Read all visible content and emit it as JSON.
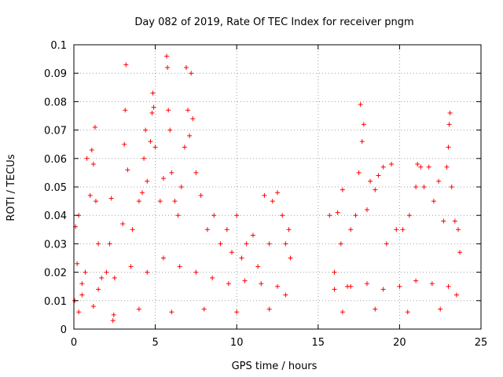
{
  "chart_data": {
    "type": "scatter",
    "title": "Day 082 of 2019, Rate Of TEC Index for receiver pngm",
    "xlabel": "GPS time / hours",
    "ylabel": "ROTI / TECUs",
    "xlim": [
      0,
      25
    ],
    "ylim": [
      0,
      0.1
    ],
    "xticks": [
      0,
      5,
      10,
      15,
      20,
      25
    ],
    "yticks": [
      0,
      0.01,
      0.02,
      0.03,
      0.04,
      0.05,
      0.06,
      0.07,
      0.08,
      0.09,
      0.1
    ],
    "xtick_labels": [
      "0",
      "5",
      "10",
      "15",
      "20",
      "25"
    ],
    "ytick_labels": [
      "0",
      "0.01",
      "0.02",
      "0.03",
      "0.04",
      "0.05",
      "0.06",
      "0.07",
      "0.08",
      "0.09",
      "0.1"
    ],
    "grid": true,
    "marker": "+",
    "color": "#ff0000",
    "data_gap_hours": [
      13.4,
      15.6
    ],
    "points": [
      [
        0.05,
        0.01
      ],
      [
        0.1,
        0.036
      ],
      [
        0.2,
        0.023
      ],
      [
        0.3,
        0.04
      ],
      [
        0.5,
        0.012
      ],
      [
        0.7,
        0.02
      ],
      [
        0.8,
        0.06
      ],
      [
        1.0,
        0.047
      ],
      [
        1.1,
        0.063
      ],
      [
        1.2,
        0.058
      ],
      [
        1.3,
        0.071
      ],
      [
        1.35,
        0.045
      ],
      [
        1.5,
        0.03
      ],
      [
        1.7,
        0.018
      ],
      [
        2.0,
        0.02
      ],
      [
        2.2,
        0.03
      ],
      [
        2.3,
        0.046
      ],
      [
        2.45,
        0.005
      ],
      [
        3.0,
        0.037
      ],
      [
        3.1,
        0.065
      ],
      [
        3.15,
        0.077
      ],
      [
        3.2,
        0.093
      ],
      [
        3.3,
        0.056
      ],
      [
        3.6,
        0.035
      ],
      [
        4.0,
        0.045
      ],
      [
        4.2,
        0.048
      ],
      [
        4.3,
        0.06
      ],
      [
        4.4,
        0.07
      ],
      [
        4.5,
        0.052
      ],
      [
        4.7,
        0.066
      ],
      [
        4.8,
        0.076
      ],
      [
        4.85,
        0.083
      ],
      [
        4.9,
        0.078
      ],
      [
        5.0,
        0.064
      ],
      [
        5.3,
        0.045
      ],
      [
        5.5,
        0.053
      ],
      [
        5.7,
        0.096
      ],
      [
        5.75,
        0.092
      ],
      [
        5.8,
        0.077
      ],
      [
        5.9,
        0.07
      ],
      [
        6.0,
        0.055
      ],
      [
        6.2,
        0.045
      ],
      [
        6.4,
        0.04
      ],
      [
        6.6,
        0.05
      ],
      [
        6.8,
        0.064
      ],
      [
        6.9,
        0.092
      ],
      [
        7.0,
        0.077
      ],
      [
        7.1,
        0.068
      ],
      [
        7.2,
        0.09
      ],
      [
        7.3,
        0.074
      ],
      [
        7.5,
        0.055
      ],
      [
        7.8,
        0.047
      ],
      [
        8.2,
        0.035
      ],
      [
        8.6,
        0.04
      ],
      [
        9.0,
        0.03
      ],
      [
        9.4,
        0.035
      ],
      [
        9.7,
        0.027
      ],
      [
        10.0,
        0.04
      ],
      [
        10.3,
        0.025
      ],
      [
        10.6,
        0.03
      ],
      [
        11.0,
        0.033
      ],
      [
        11.3,
        0.022
      ],
      [
        11.7,
        0.047
      ],
      [
        12.0,
        0.03
      ],
      [
        12.2,
        0.045
      ],
      [
        12.5,
        0.048
      ],
      [
        12.8,
        0.04
      ],
      [
        13.0,
        0.03
      ],
      [
        13.2,
        0.035
      ],
      [
        13.3,
        0.025
      ],
      [
        15.7,
        0.04
      ],
      [
        16.0,
        0.02
      ],
      [
        16.2,
        0.041
      ],
      [
        16.4,
        0.03
      ],
      [
        16.5,
        0.049
      ],
      [
        16.8,
        0.015
      ],
      [
        17.0,
        0.035
      ],
      [
        17.3,
        0.04
      ],
      [
        17.5,
        0.055
      ],
      [
        17.6,
        0.079
      ],
      [
        17.7,
        0.066
      ],
      [
        17.8,
        0.072
      ],
      [
        18.0,
        0.042
      ],
      [
        18.2,
        0.052
      ],
      [
        18.5,
        0.049
      ],
      [
        18.7,
        0.054
      ],
      [
        19.0,
        0.057
      ],
      [
        19.2,
        0.03
      ],
      [
        19.5,
        0.058
      ],
      [
        19.8,
        0.035
      ],
      [
        20.2,
        0.035
      ],
      [
        20.6,
        0.04
      ],
      [
        21.0,
        0.05
      ],
      [
        21.1,
        0.058
      ],
      [
        21.3,
        0.057
      ],
      [
        21.5,
        0.05
      ],
      [
        21.8,
        0.057
      ],
      [
        22.1,
        0.045
      ],
      [
        22.4,
        0.052
      ],
      [
        22.7,
        0.038
      ],
      [
        22.9,
        0.057
      ],
      [
        23.0,
        0.064
      ],
      [
        23.05,
        0.072
      ],
      [
        23.1,
        0.076
      ],
      [
        23.2,
        0.05
      ],
      [
        23.4,
        0.038
      ],
      [
        23.6,
        0.035
      ],
      [
        23.7,
        0.027
      ],
      [
        0.5,
        0.016
      ],
      [
        1.5,
        0.014
      ],
      [
        2.5,
        0.018
      ],
      [
        3.5,
        0.022
      ],
      [
        4.5,
        0.02
      ],
      [
        5.5,
        0.025
      ],
      [
        6.5,
        0.022
      ],
      [
        7.5,
        0.02
      ],
      [
        8.5,
        0.018
      ],
      [
        9.5,
        0.016
      ],
      [
        10.5,
        0.017
      ],
      [
        11.5,
        0.016
      ],
      [
        12.5,
        0.015
      ],
      [
        13.0,
        0.012
      ],
      [
        16.0,
        0.014
      ],
      [
        17.0,
        0.015
      ],
      [
        18.0,
        0.016
      ],
      [
        19.0,
        0.014
      ],
      [
        20.0,
        0.015
      ],
      [
        21.0,
        0.017
      ],
      [
        22.0,
        0.016
      ],
      [
        23.0,
        0.015
      ],
      [
        23.5,
        0.012
      ],
      [
        0.3,
        0.006
      ],
      [
        1.2,
        0.008
      ],
      [
        2.4,
        0.003
      ],
      [
        4.0,
        0.007
      ],
      [
        6.0,
        0.006
      ],
      [
        8.0,
        0.007
      ],
      [
        10.0,
        0.006
      ],
      [
        12.0,
        0.007
      ],
      [
        16.5,
        0.006
      ],
      [
        18.5,
        0.007
      ],
      [
        20.5,
        0.006
      ],
      [
        22.5,
        0.007
      ]
    ]
  }
}
